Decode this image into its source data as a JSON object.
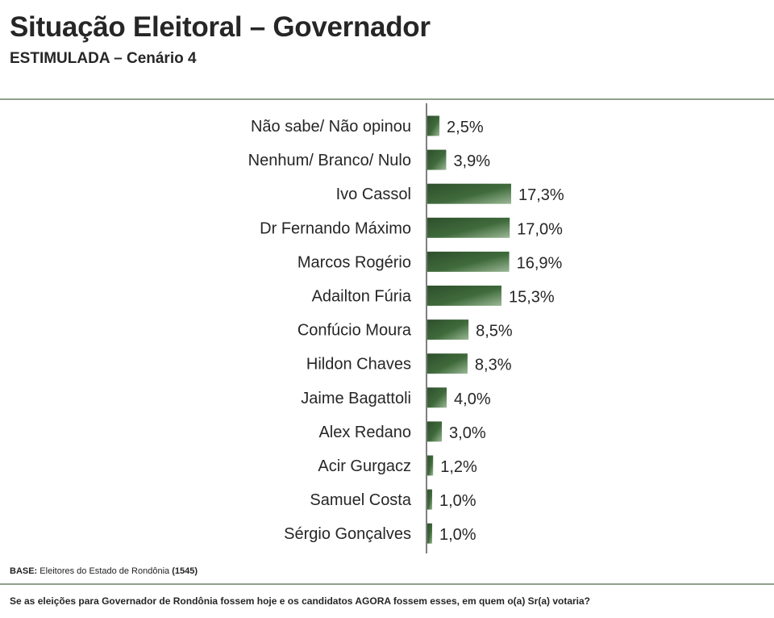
{
  "header": {
    "title": "Situação Eleitoral – Governador",
    "subtitle": "ESTIMULADA – Cenário 4"
  },
  "chart_data": {
    "type": "bar",
    "orientation": "horizontal",
    "categories": [
      "Não sabe/ Não opinou",
      "Nenhum/ Branco/ Nulo",
      "Ivo Cassol",
      "Dr Fernando Máximo",
      "Marcos Rogério",
      "Adailton Fúria",
      "Confúcio Moura",
      "Hildon Chaves",
      "Jaime Bagattoli",
      "Alex Redano",
      "Acir Gurgacz",
      "Samuel Costa",
      "Sérgio Gonçalves"
    ],
    "values": [
      2.5,
      3.9,
      17.3,
      17.0,
      16.9,
      15.3,
      8.5,
      8.3,
      4.0,
      3.0,
      1.2,
      1.0,
      1.0
    ],
    "labels": [
      "2,5%",
      "3,9%",
      "17,3%",
      "17,0%",
      "16,9%",
      "15,3%",
      "8,5%",
      "8,3%",
      "4,0%",
      "3,0%",
      "1,2%",
      "1,0%",
      "1,0%"
    ],
    "unit": "%",
    "grid": false,
    "legend": "none",
    "colors": {
      "bar_dark": "#2e4f2c",
      "bar_light": "#8fae8a",
      "axis": "#7f7f7f"
    }
  },
  "footer": {
    "base_label": "BASE:",
    "base_text": "Eleitores do Estado de Rondônia",
    "base_n": "(1545)",
    "question": "Se as eleições para Governador de Rondônia fossem hoje e os candidatos AGORA fossem esses, em quem o(a) Sr(a) votaria?"
  }
}
